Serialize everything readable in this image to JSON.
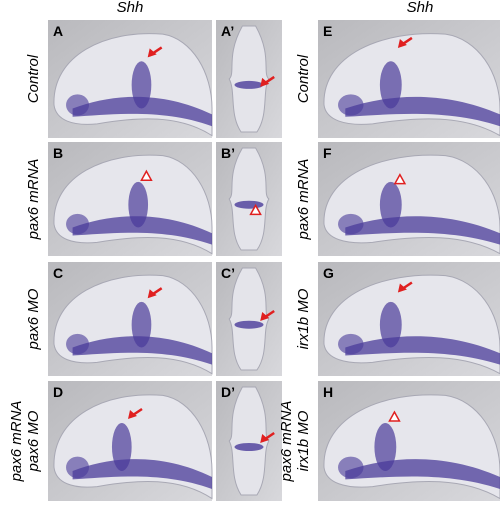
{
  "headers": [
    "Shh",
    "Shh"
  ],
  "panels": [
    "A",
    "A’",
    "B",
    "B’",
    "C",
    "C’",
    "D",
    "D’",
    "E",
    "F",
    "G",
    "H"
  ],
  "row_labels_left": [
    [
      "Control"
    ],
    [
      "pax6 mRNA"
    ],
    [
      "pax6 MO"
    ],
    [
      "pax6 mRNA",
      "pax6 MO"
    ]
  ],
  "row_labels_right": [
    [
      "Control"
    ],
    [
      "pax6 mRNA"
    ],
    [
      "irx1b MO"
    ],
    [
      "pax6 mRNA",
      "irx1b MO"
    ]
  ]
}
